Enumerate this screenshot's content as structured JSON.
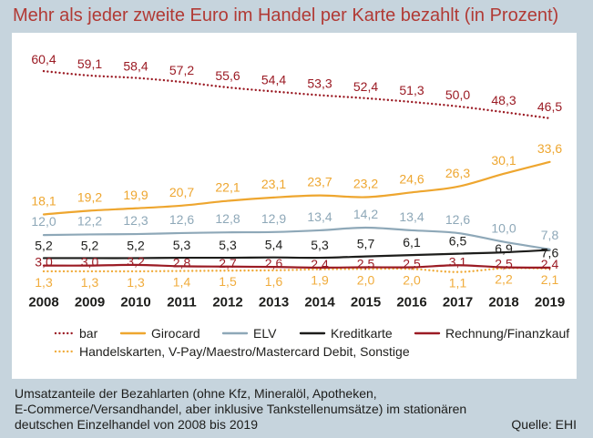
{
  "chart_data": {
    "type": "line",
    "title": "Mehr als jeder zweite Euro im Handel per Karte bezahlt (in Prozent)",
    "categories": [
      "2008",
      "2009",
      "2010",
      "2011",
      "2012",
      "2013",
      "2014",
      "2015",
      "2016",
      "2017",
      "2018",
      "2019"
    ],
    "ylim": [
      0,
      70
    ],
    "grid": false,
    "y_axis": "hidden",
    "legend_position": "bottom",
    "series": [
      {
        "name": "bar",
        "color": "#9b1b24",
        "line_style": "dotted",
        "values": [
          60.4,
          59.1,
          58.4,
          57.2,
          55.6,
          54.4,
          53.3,
          52.4,
          51.3,
          50.0,
          48.3,
          46.5
        ],
        "labels": [
          "60,4",
          "59,1",
          "58,4",
          "57,2",
          "55,6",
          "54,4",
          "53,3",
          "52,4",
          "51,3",
          "50,0",
          "48,3",
          "46,5"
        ]
      },
      {
        "name": "Girocard",
        "color": "#eea62f",
        "line_style": "solid",
        "values": [
          18.1,
          19.2,
          19.9,
          20.7,
          22.1,
          23.1,
          23.7,
          23.2,
          24.6,
          26.3,
          30.1,
          33.6
        ],
        "labels": [
          "18,1",
          "19,2",
          "19,9",
          "20,7",
          "22,1",
          "23,1",
          "23,7",
          "23,2",
          "24,6",
          "26,3",
          "30,1",
          "33,6"
        ]
      },
      {
        "name": "ELV",
        "color": "#8ea8b8",
        "line_style": "solid",
        "values": [
          12.0,
          12.2,
          12.3,
          12.6,
          12.8,
          12.9,
          13.4,
          14.2,
          13.4,
          12.6,
          10.0,
          7.8
        ],
        "labels": [
          "12,0",
          "12,2",
          "12,3",
          "12,6",
          "12,8",
          "12,9",
          "13,4",
          "14,2",
          "13,4",
          "12,6",
          "10,0",
          "7,8"
        ]
      },
      {
        "name": "Kreditkarte",
        "color": "#1d1d1b",
        "line_style": "solid",
        "values": [
          5.2,
          5.2,
          5.2,
          5.3,
          5.3,
          5.4,
          5.3,
          5.7,
          6.1,
          6.5,
          6.9,
          7.6
        ],
        "labels": [
          "5,2",
          "5,2",
          "5,2",
          "5,3",
          "5,3",
          "5,4",
          "5,3",
          "5,7",
          "6,1",
          "6,5",
          "6,9",
          "7,6"
        ]
      },
      {
        "name": "Rechnung/Finanzkauf",
        "color": "#9b1b24",
        "line_style": "solid",
        "values": [
          3.0,
          3.0,
          3.2,
          2.8,
          2.7,
          2.6,
          2.4,
          2.5,
          2.5,
          3.1,
          2.5,
          2.4
        ],
        "labels": [
          "3,0",
          "3,0",
          "3,2",
          "2,8",
          "2,7",
          "2,6",
          "2,4",
          "2,5",
          "2,5",
          "3,1",
          "2,5",
          "2,4"
        ]
      },
      {
        "name": "Handelskarten, V-Pay/Maestro/Mastercard Debit, Sonstige",
        "color": "#f0ac3c",
        "line_style": "dotted",
        "values": [
          1.3,
          1.3,
          1.3,
          1.4,
          1.5,
          1.6,
          1.9,
          2.0,
          2.0,
          1.1,
          2.2,
          2.1
        ],
        "labels": [
          "1,3",
          "1,3",
          "1,3",
          "1,4",
          "1,5",
          "1,6",
          "1,9",
          "2,0",
          "2,0",
          "1,1",
          "2,2",
          "2,1"
        ]
      }
    ]
  },
  "footnote": {
    "lines": [
      "Umsatzanteile der Bezahlarten (ohne Kfz, Mineralöl, Apotheken,",
      "E-Commerce/Versandhandel, aber inklusive Tankstellenumsätze) im stationären",
      "deutschen Einzelhandel von 2008 bis 2019"
    ],
    "source": "Quelle: EHI"
  },
  "colors": {
    "background": "#c6d4dd",
    "panel": "#ffffff",
    "title": "#b13a35",
    "text": "#1d1d1b"
  }
}
